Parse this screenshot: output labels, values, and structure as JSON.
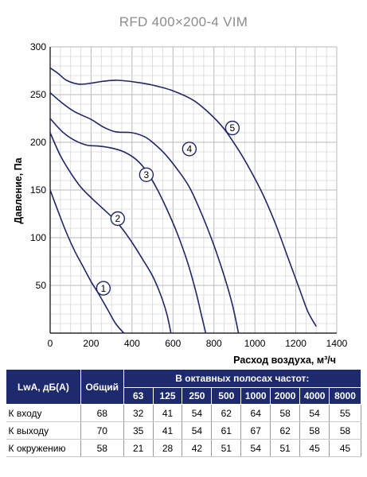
{
  "title": "RFD 400×200-4 VIM",
  "chart_data": {
    "type": "line",
    "xlabel": "Расход воздуха, м³/ч",
    "ylabel": "Давление, Па",
    "xlim": [
      0,
      1400
    ],
    "ylim": [
      0,
      300
    ],
    "x_ticks": [
      0,
      200,
      400,
      600,
      800,
      1000,
      1200,
      1400
    ],
    "y_ticks": [
      50,
      100,
      150,
      200,
      250,
      300
    ],
    "grid": true,
    "series": [
      {
        "name": "1",
        "label_at": [
          260,
          47
        ],
        "points": [
          [
            0,
            150
          ],
          [
            40,
            127
          ],
          [
            80,
            105
          ],
          [
            120,
            86
          ],
          [
            160,
            70
          ],
          [
            200,
            54
          ],
          [
            240,
            40
          ],
          [
            280,
            25
          ],
          [
            320,
            10
          ],
          [
            360,
            0
          ]
        ]
      },
      {
        "name": "2",
        "label_at": [
          330,
          120
        ],
        "points": [
          [
            0,
            210
          ],
          [
            50,
            186
          ],
          [
            100,
            168
          ],
          [
            150,
            153
          ],
          [
            200,
            142
          ],
          [
            250,
            132
          ],
          [
            300,
            122
          ],
          [
            350,
            110
          ],
          [
            400,
            95
          ],
          [
            450,
            78
          ],
          [
            500,
            60
          ],
          [
            540,
            40
          ],
          [
            570,
            20
          ],
          [
            590,
            0
          ]
        ]
      },
      {
        "name": "3",
        "label_at": [
          470,
          166
        ],
        "points": [
          [
            0,
            225
          ],
          [
            60,
            211
          ],
          [
            120,
            202
          ],
          [
            180,
            197
          ],
          [
            240,
            196
          ],
          [
            300,
            194
          ],
          [
            360,
            190
          ],
          [
            420,
            182
          ],
          [
            470,
            170
          ],
          [
            520,
            152
          ],
          [
            570,
            130
          ],
          [
            620,
            105
          ],
          [
            670,
            75
          ],
          [
            710,
            45
          ],
          [
            740,
            18
          ],
          [
            760,
            0
          ]
        ]
      },
      {
        "name": "4",
        "label_at": [
          680,
          193
        ],
        "points": [
          [
            0,
            252
          ],
          [
            60,
            241
          ],
          [
            120,
            232
          ],
          [
            200,
            224
          ],
          [
            260,
            216
          ],
          [
            320,
            211
          ],
          [
            400,
            210
          ],
          [
            460,
            206
          ],
          [
            500,
            200
          ],
          [
            560,
            188
          ],
          [
            620,
            172
          ],
          [
            680,
            153
          ],
          [
            740,
            125
          ],
          [
            800,
            92
          ],
          [
            850,
            60
          ],
          [
            890,
            30
          ],
          [
            920,
            0
          ]
        ]
      },
      {
        "name": "5",
        "label_at": [
          890,
          215
        ],
        "points": [
          [
            0,
            278
          ],
          [
            40,
            272
          ],
          [
            80,
            265
          ],
          [
            140,
            261
          ],
          [
            200,
            262
          ],
          [
            260,
            264
          ],
          [
            330,
            265
          ],
          [
            420,
            263
          ],
          [
            500,
            260
          ],
          [
            600,
            254
          ],
          [
            700,
            244
          ],
          [
            780,
            230
          ],
          [
            850,
            214
          ],
          [
            920,
            192
          ],
          [
            980,
            170
          ],
          [
            1040,
            145
          ],
          [
            1100,
            115
          ],
          [
            1160,
            80
          ],
          [
            1220,
            45
          ],
          [
            1260,
            22
          ],
          [
            1300,
            7
          ]
        ]
      }
    ]
  },
  "table": {
    "header": {
      "lwa": "LwA, дБ(A)",
      "total": "Общий",
      "bands_title": "В октавных полосах частот:",
      "bands": [
        "63",
        "125",
        "250",
        "500",
        "1000",
        "2000",
        "4000",
        "8000"
      ]
    },
    "rows": [
      {
        "label": "К входу",
        "total": "68",
        "values": [
          "32",
          "41",
          "54",
          "62",
          "64",
          "58",
          "54",
          "55"
        ]
      },
      {
        "label": "К выходу",
        "total": "70",
        "values": [
          "35",
          "41",
          "54",
          "61",
          "67",
          "62",
          "58",
          "58"
        ]
      },
      {
        "label": "К окружению",
        "total": "58",
        "values": [
          "21",
          "28",
          "42",
          "51",
          "54",
          "51",
          "45",
          "45"
        ]
      }
    ]
  }
}
